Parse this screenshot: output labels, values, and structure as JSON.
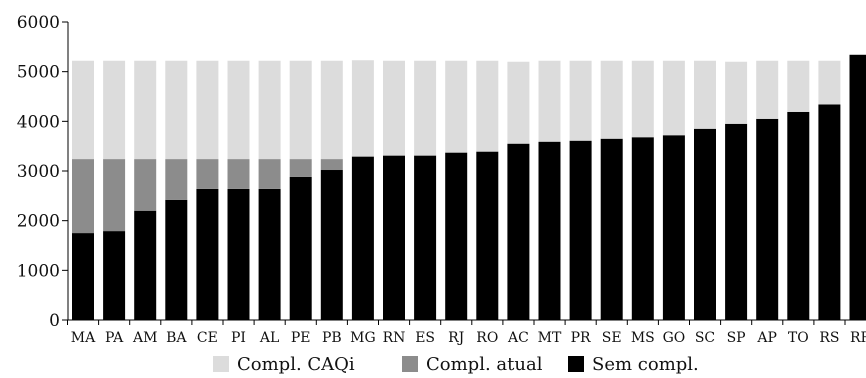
{
  "chart_data": {
    "type": "bar",
    "stacked": true,
    "categories": [
      "MA",
      "PA",
      "AM",
      "BA",
      "CE",
      "PI",
      "AL",
      "PE",
      "PB",
      "MG",
      "RN",
      "ES",
      "RJ",
      "RO",
      "AC",
      "MT",
      "PR",
      "SE",
      "MS",
      "GO",
      "SC",
      "SP",
      "AP",
      "TO",
      "RS",
      "RR"
    ],
    "series": [
      {
        "name": "Sem compl.",
        "color": "#000000",
        "values": [
          1750,
          1790,
          2200,
          2420,
          2640,
          2640,
          2640,
          2880,
          3020,
          3290,
          3310,
          3310,
          3370,
          3390,
          3550,
          3590,
          3610,
          3650,
          3680,
          3720,
          3850,
          3950,
          4050,
          4190,
          4340,
          5340
        ]
      },
      {
        "name": "Compl. atual",
        "color": "#8c8c8c",
        "values": [
          1490,
          1450,
          1040,
          820,
          600,
          600,
          600,
          360,
          220,
          0,
          0,
          0,
          0,
          0,
          0,
          0,
          0,
          0,
          0,
          0,
          0,
          0,
          0,
          0,
          0,
          0
        ]
      },
      {
        "name": "Compl. CAQi",
        "color": "#dcdcdc",
        "values": [
          1980,
          1980,
          1980,
          1980,
          1980,
          1980,
          1980,
          1980,
          1980,
          1940,
          1910,
          1910,
          1850,
          1830,
          1650,
          1630,
          1610,
          1570,
          1540,
          1500,
          1370,
          1250,
          1170,
          1030,
          880,
          0
        ]
      }
    ],
    "legend_order": [
      "Compl. CAQi",
      "Compl. atual",
      "Sem compl."
    ],
    "legend_position": "bottom",
    "ylim": [
      0,
      6000
    ],
    "yticks": [
      "0",
      "1000",
      "2000",
      "3000",
      "4000",
      "5000",
      "6000"
    ],
    "grid": false,
    "title": "",
    "xlabel": "",
    "ylabel": ""
  }
}
